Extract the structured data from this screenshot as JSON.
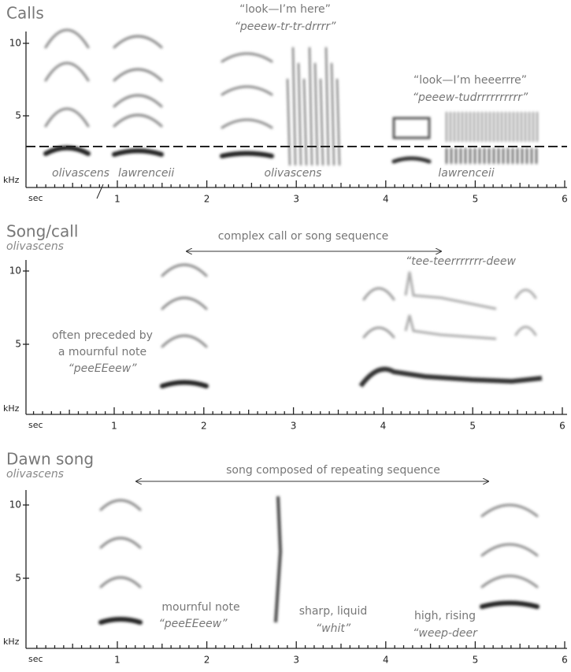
{
  "panels": [
    {
      "title": "Calls",
      "y_axis": {
        "unit": "kHz",
        "ticks": [
          10,
          5
        ]
      },
      "x_axis": {
        "unit": "sec",
        "ticks": [
          1,
          2,
          3,
          4,
          5,
          6
        ]
      },
      "annotations": [
        "“look—I’m here”",
        "“peeew-tr-tr-drrrr”",
        "“look—I’m heeerrre”",
        "“peeew-tudrrrrrrrrrr”"
      ],
      "labels": [
        "olivascens",
        "lawrenceii",
        "olivascens",
        "lawrenceii"
      ]
    },
    {
      "title": "Song/call",
      "subtitle": "olivascens",
      "y_axis": {
        "unit": "kHz",
        "ticks": [
          10,
          5
        ]
      },
      "x_axis": {
        "unit": "sec",
        "ticks": [
          1,
          2,
          3,
          4,
          5,
          6
        ]
      },
      "span_label": "complex call or song sequence",
      "annotations": [
        "often preceded by",
        "a mournful note",
        "“peeEEeew”",
        "“tee-teerrrrrrr-deew"
      ]
    },
    {
      "title": "Dawn song",
      "subtitle": "olivascens",
      "y_axis": {
        "unit": "kHz",
        "ticks": [
          10,
          5
        ]
      },
      "x_axis": {
        "unit": "sec",
        "ticks": [
          1,
          2,
          3,
          4,
          5,
          6
        ]
      },
      "span_label": "song composed of repeating sequence",
      "annotations": [
        "mournful note",
        "“peeEEeew”",
        "sharp, liquid",
        "“whit”",
        "high, rising",
        "“weep-deer"
      ]
    }
  ]
}
